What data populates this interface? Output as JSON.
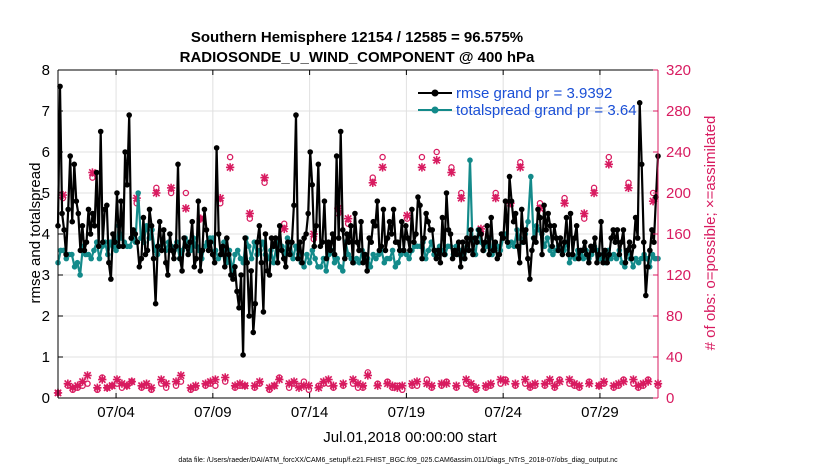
{
  "chart_data": {
    "type": "line",
    "title_line1": "Southern Hemisphere 12154 / 12585 = 96.575%",
    "title_line2": "RADIOSONDE_U_WIND_COMPONENT @ 400 hPa",
    "xlabel": "Jul.01,2018 00:00:00 start",
    "ylabel_left": "rmse and totalspread",
    "ylabel_right": "# of obs: o=possible; ×=assimilated",
    "footnote": "data file: /Users/raeder/DAI/ATM_forcXX/CAM6_setup/f.e21.FHIST_BGC.f09_025.CAM6assim.011/Diags_NTrS_2018-07/obs_diag_output.nc",
    "x_tick_labels": [
      "07/04",
      "07/09",
      "07/14",
      "07/19",
      "07/24",
      "07/29"
    ],
    "x_tick_positions": [
      4,
      9,
      14,
      19,
      24,
      29
    ],
    "xlim": [
      1,
      32
    ],
    "ylim_left": [
      0,
      8
    ],
    "y_ticks_left": [
      "0",
      "1",
      "2",
      "3",
      "4",
      "5",
      "6",
      "7",
      "8"
    ],
    "ylim_right": [
      0,
      320
    ],
    "y_ticks_right": [
      "0",
      "40",
      "80",
      "120",
      "160",
      "200",
      "240",
      "280",
      "320"
    ],
    "colors": {
      "rmse": "#000000",
      "spread": "#138a8a",
      "obs": "#d81b60",
      "axis_right": "#d81b60",
      "legend_text": "#1a4fd6",
      "grid": "#e0e0e0"
    },
    "series": [
      {
        "name": "rmse grand pr = 3.9392",
        "axis": "left",
        "values": [
          4.2,
          7.6,
          4.5,
          4.1,
          3.5,
          4.6,
          5.9,
          4.3,
          5.7,
          4.8,
          4.5,
          3.6,
          4.2,
          3.6,
          3.8,
          4.6,
          4.0,
          4.5,
          4.2,
          5.5,
          3.7,
          6.5,
          3.8,
          4.6,
          4.7,
          3.3,
          2.9,
          4.0,
          3.8,
          5.0,
          3.7,
          4.8,
          3.7,
          6.0,
          5.2,
          6.9,
          3.9,
          4.1,
          4.0,
          3.8,
          3.2,
          3.4,
          4.4,
          3.5,
          3.6,
          4.6,
          4.2,
          3.4,
          2.3,
          3.7,
          4.3,
          3.6,
          4.1,
          3.3,
          3.0,
          4.0,
          3.6,
          3.4,
          3.7,
          5.7,
          3.4,
          3.1,
          3.9,
          3.7,
          3.5,
          3.8,
          4.3,
          3.2,
          3.4,
          4.8,
          3.1,
          3.6,
          4.6,
          4.1,
          3.6,
          3.8,
          3.5,
          3.3,
          6.1,
          4.0,
          3.5,
          3.7,
          3.2,
          3.9,
          3.5,
          3.0,
          2.9,
          3.2,
          2.6,
          2.2,
          3.0,
          1.05,
          3.9,
          3.3,
          2.0,
          3.1,
          1.6,
          2.3,
          3.8,
          4.2,
          3.3,
          2.1,
          4.0,
          3.1,
          3.0,
          3.9,
          3.7,
          3.9,
          3.3,
          4.2,
          3.6,
          3.4,
          3.2,
          3.8,
          3.5,
          3.8,
          4.7,
          6.9,
          3.4,
          3.8,
          3.3,
          3.9,
          4.0,
          4.5,
          6.0,
          5.2,
          3.7,
          4.2,
          5.7,
          3.7,
          3.8,
          4.8,
          3.4,
          3.8,
          3.6,
          4.0,
          3.5,
          5.9,
          3.9,
          6.5,
          4.1,
          3.4,
          4.0,
          3.8,
          4.2,
          3.3,
          4.5,
          3.8,
          3.6,
          4.3,
          3.3,
          3.5,
          3.1,
          3.9,
          3.8,
          4.3,
          4.2,
          4.8,
          3.6,
          3.7,
          4.6,
          3.6,
          3.9,
          4.3,
          4.0,
          4.6,
          3.8,
          3.8,
          3.6,
          4.3,
          3.6,
          4.2,
          3.9,
          3.6,
          4.6,
          3.8,
          4.0,
          4.9,
          4.7,
          3.4,
          3.9,
          4.5,
          4.3,
          4.1,
          4.1,
          3.6,
          3.4,
          3.6,
          3.3,
          4.4,
          3.5,
          5.0,
          4.1,
          4.0,
          3.4,
          3.6,
          3.5,
          3.8,
          3.2,
          3.8,
          3.4,
          3.9,
          3.6,
          4.1,
          3.5,
          3.9,
          3.8,
          4.1,
          4.0,
          3.6,
          3.8,
          4.2,
          3.5,
          4.4,
          3.6,
          3.8,
          3.4,
          3.5,
          4.0,
          3.9,
          4.8,
          3.8,
          5.4,
          4.8,
          4.3,
          4.5,
          3.7,
          3.3,
          4.6,
          3.8,
          4.1,
          3.4,
          2.9,
          3.6,
          3.9,
          3.8,
          4.6,
          4.4,
          3.5,
          4.7,
          4.1,
          4.5,
          4.2,
          3.7,
          4.2,
          3.9,
          3.6,
          3.9,
          3.5,
          3.8,
          4.4,
          3.5,
          4.5,
          3.5,
          3.9,
          4.2,
          3.4,
          3.6,
          3.6,
          3.8,
          3.5,
          3.3,
          3.7,
          3.6,
          3.9,
          3.3,
          3.5,
          4.3,
          3.3,
          3.6,
          3.3,
          3.5,
          3.9,
          4.1,
          3.8,
          4.1,
          3.5,
          3.8,
          4.1,
          3.3,
          3.6,
          3.8,
          3.4,
          3.7,
          4.4,
          3.9,
          7.2,
          5.7,
          3.8,
          2.5,
          3.2,
          3.6,
          4.1,
          3.8,
          4.9,
          5.9
        ]
      },
      {
        "name": "totalspread grand pr = 3.64",
        "axis": "left",
        "values": [
          3.3,
          3.6,
          3.6,
          3.4,
          3.5,
          3.5,
          3.2,
          3.3,
          3.0,
          3.7,
          3.5,
          3.5,
          3.4,
          3.6,
          3.8,
          3.4,
          3.7,
          3.8,
          3.5,
          3.8,
          3.7,
          3.6,
          4.2,
          3.9,
          3.8,
          3.7,
          3.7,
          3.9,
          3.8,
          5.0,
          3.9,
          3.8,
          4.2,
          3.9,
          4.1,
          3.6,
          3.5,
          3.7,
          3.8,
          3.6,
          3.8,
          3.7,
          3.6,
          3.8,
          3.4,
          3.6,
          3.9,
          3.8,
          3.6,
          3.9,
          3.7,
          3.6,
          3.4,
          3.7,
          3.8,
          3.9,
          3.9,
          3.6,
          3.4,
          3.5,
          3.8,
          3.3,
          3.6,
          3.1,
          3.5,
          3.6,
          3.4,
          3.3,
          3.9,
          3.7,
          3.4,
          3.8,
          3.5,
          3.6,
          3.8,
          3.5,
          3.4,
          3.6,
          3.3,
          3.7,
          3.8,
          3.7,
          3.5,
          3.9,
          3.8,
          3.4,
          3.7,
          3.5,
          3.3,
          3.2,
          3.5,
          3.3,
          3.6,
          3.4,
          3.2,
          3.2,
          3.4,
          3.1,
          3.5,
          3.6,
          3.3,
          3.4,
          3.2,
          3.1,
          3.8,
          3.5,
          3.4,
          3.3,
          3.4,
          3.3,
          3.6,
          3.5,
          3.4,
          3.2,
          3.5,
          3.4,
          3.5,
          3.6,
          3.3,
          3.4,
          3.4,
          3.6,
          3.2,
          3.3,
          3.5,
          3.6,
          3.5,
          3.4,
          3.6,
          3.7,
          3.7,
          3.7,
          3.8,
          3.4,
          3.6,
          3.8,
          3.5,
          3.6,
          3.7,
          3.6,
          3.5,
          3.7,
          3.7,
          3.5,
          3.7,
          3.5,
          3.6,
          3.4,
          3.7,
          5.8,
          3.6,
          3.5,
          4.1,
          3.8,
          3.6,
          3.7,
          3.9,
          3.5,
          3.6,
          3.7,
          3.6,
          3.9,
          4.0,
          3.7,
          3.8,
          3.7,
          4.1,
          3.9,
          3.8,
          4.0,
          4.3,
          5.4,
          3.9,
          4.2,
          4.1,
          4.0,
          3.7,
          3.9,
          3.6,
          3.5,
          3.6,
          3.7,
          3.6,
          3.6,
          3.8,
          3.3,
          3.5,
          3.4,
          3.6,
          3.5,
          3.4,
          3.6,
          3.4,
          3.5,
          3.7,
          3.6,
          3.4,
          3.5,
          3.3,
          3.6,
          3.4,
          3.5,
          3.4,
          3.6,
          3.3,
          3.2,
          3.6,
          3.4,
          3.2,
          3.4,
          3.3,
          3.4,
          3.5,
          3.4,
          3.2,
          3.5,
          3.4,
          3.4
        ]
      },
      {
        "name": "obs possible",
        "axis": "right",
        "marker": "o",
        "values": [
          5,
          195,
          12,
          8,
          10,
          12,
          14,
          215,
          8,
          20,
          10,
          12,
          14,
          10,
          12,
          16,
          190,
          10,
          12,
          8,
          205,
          14,
          10,
          200,
          12,
          16,
          200,
          8,
          10,
          175,
          12,
          14,
          12,
          190,
          16,
          235,
          10,
          12,
          12,
          175,
          10,
          14,
          210,
          8,
          12,
          20,
          170,
          10,
          14,
          12,
          16,
          8,
          155,
          12,
          14,
          14,
          10,
          180,
          12,
          170,
          14,
          10,
          10,
          25,
          215,
          14,
          235,
          16,
          10,
          12,
          8,
          175,
          12,
          12,
          235,
          18,
          10,
          240,
          12,
          16,
          225,
          10,
          200,
          14,
          12,
          8,
          160,
          10,
          12,
          200,
          14,
          18,
          190,
          12,
          230,
          14,
          10,
          12,
          190,
          12,
          16,
          10,
          18,
          195,
          14,
          12,
          10,
          175,
          16,
          205,
          12,
          14,
          235,
          10,
          12,
          18,
          210,
          14,
          10,
          12,
          18,
          200,
          12
        ]
      },
      {
        "name": "obs assimilated",
        "axis": "right",
        "marker": "x",
        "values": [
          5,
          198,
          14,
          10,
          12,
          16,
          22,
          220,
          10,
          18,
          10,
          12,
          18,
          14,
          12,
          16,
          195,
          12,
          14,
          10,
          200,
          18,
          14,
          205,
          16,
          22,
          185,
          10,
          12,
          175,
          14,
          16,
          18,
          195,
          20,
          225,
          12,
          14,
          12,
          180,
          12,
          16,
          215,
          10,
          12,
          18,
          165,
          14,
          16,
          10,
          12,
          12,
          160,
          10,
          16,
          18,
          12,
          185,
          14,
          175,
          18,
          14,
          12,
          22,
          210,
          12,
          225,
          14,
          12,
          10,
          12,
          178,
          14,
          16,
          225,
          14,
          12,
          232,
          14,
          14,
          220,
          12,
          195,
          18,
          14,
          10,
          165,
          12,
          14,
          195,
          18,
          16,
          190,
          14,
          225,
          18,
          12,
          14,
          185,
          14,
          18,
          12,
          16,
          190,
          18,
          14,
          12,
          180,
          14,
          200,
          12,
          16,
          228,
          12,
          14,
          16,
          205,
          18,
          12,
          14,
          16,
          192,
          14
        ]
      }
    ],
    "legend": [
      {
        "label": "rmse grand pr = 3.9392",
        "color": "#000000"
      },
      {
        "label": "totalspread grand pr = 3.64",
        "color": "#138a8a"
      }
    ],
    "legend_position": "top-right",
    "grid": true
  }
}
